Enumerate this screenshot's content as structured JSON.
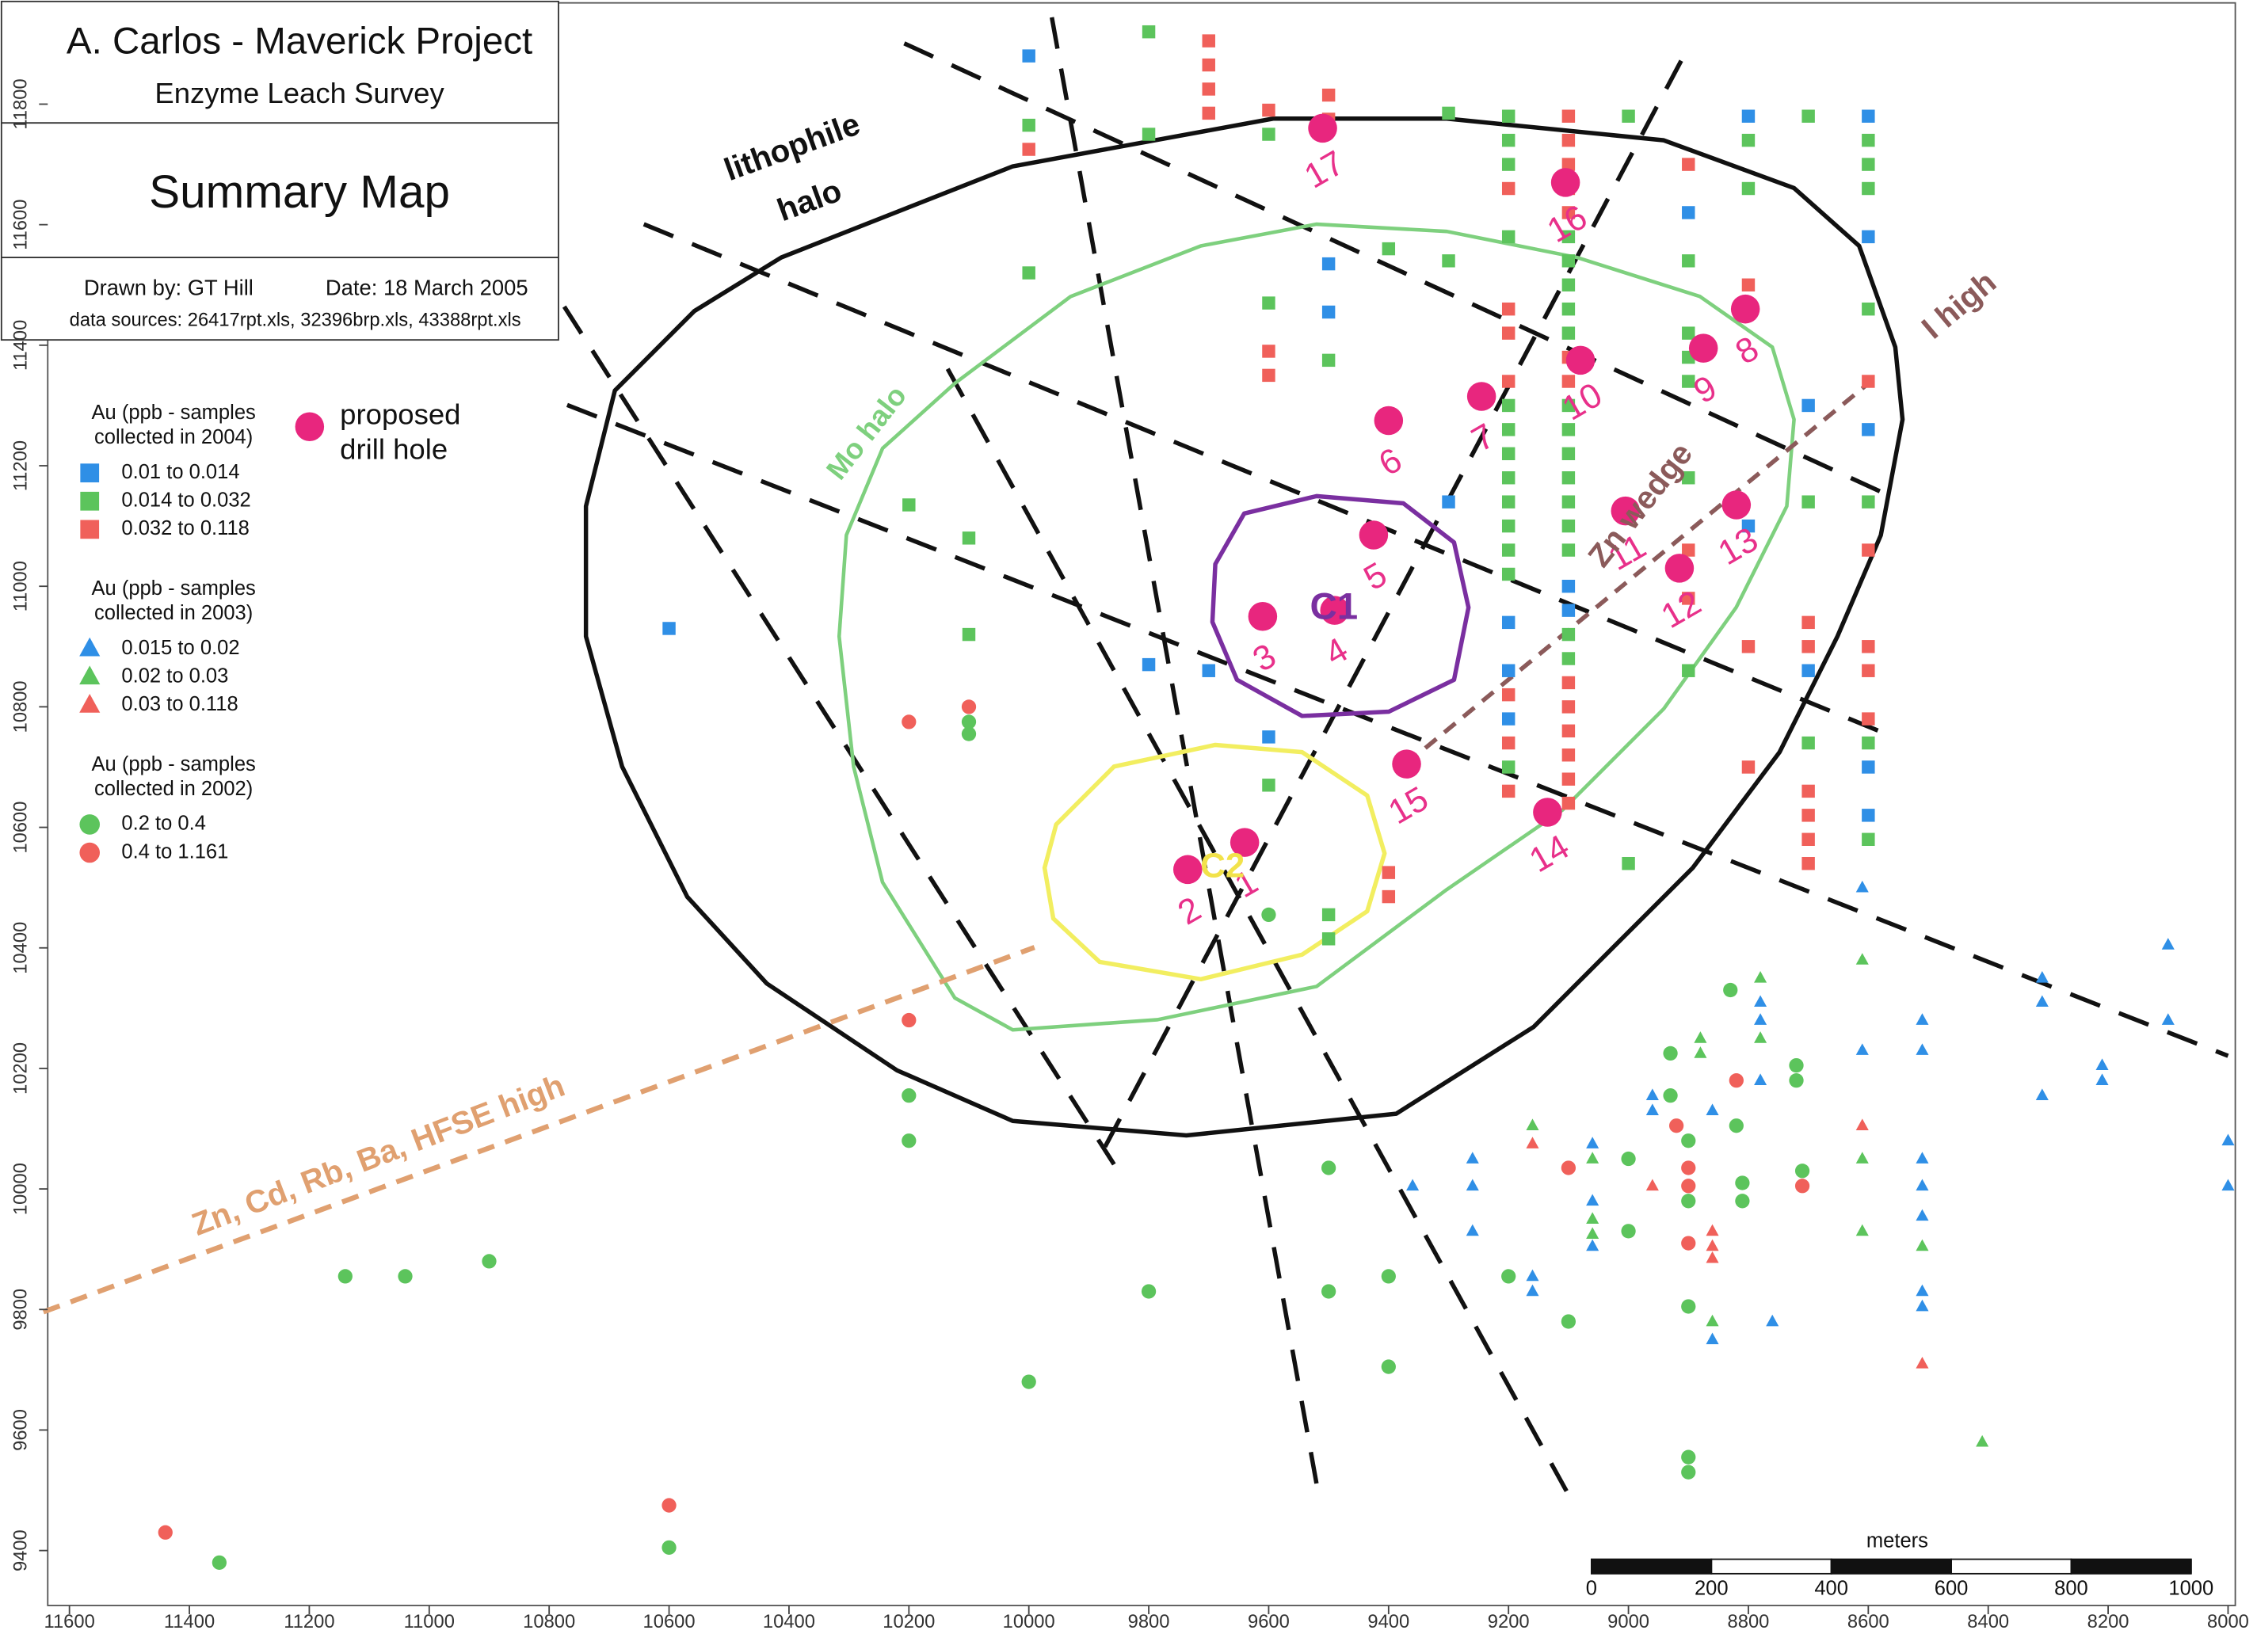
{
  "header": {
    "title": "A. Carlos - Maverick Project",
    "subtitle": "Enzyme Leach Survey",
    "map_title": "Summary Map",
    "drawn_by": "Drawn by: GT Hill",
    "date": "Date: 18 March 2005",
    "sources": "data sources: 26417rpt.xls, 32396brp.xls, 43388rpt.xls"
  },
  "axes": {
    "xlim": [
      11600,
      8000
    ],
    "ylim": [
      9400,
      11800
    ],
    "xticks": [
      11600,
      11400,
      11200,
      11000,
      10800,
      10600,
      10400,
      10200,
      10000,
      9800,
      9600,
      9400,
      9200,
      9000,
      8800,
      8600,
      8400,
      8200,
      8000
    ],
    "yticks": [
      9400,
      9600,
      9800,
      10000,
      10200,
      10400,
      10600,
      10800,
      11000,
      11200,
      11400,
      11600,
      11800
    ]
  },
  "legend": [
    {
      "title": [
        "Au (ppb - samples",
        "collected in 2004)"
      ],
      "shape": "square",
      "items": [
        {
          "label": "0.01  to  0.014",
          "color": "#2f8fe6"
        },
        {
          "label": "0.014  to  0.032",
          "color": "#5cc45c"
        },
        {
          "label": "0.032  to  0.118",
          "color": "#f0605a"
        }
      ],
      "points": [
        [
          10000,
          11880,
          0
        ],
        [
          10000,
          11765,
          1
        ],
        [
          10000,
          11725,
          2
        ],
        [
          10000,
          11520,
          1
        ],
        [
          9800,
          11920,
          1
        ],
        [
          9800,
          11750,
          1
        ],
        [
          9800,
          10870,
          0
        ],
        [
          9700,
          11905,
          2
        ],
        [
          9700,
          11865,
          2
        ],
        [
          9700,
          11825,
          2
        ],
        [
          9700,
          11785,
          2
        ],
        [
          9700,
          10860,
          0
        ],
        [
          10600,
          10930,
          0
        ],
        [
          10200,
          11135,
          1
        ],
        [
          10100,
          11080,
          1
        ],
        [
          10100,
          10920,
          1
        ],
        [
          9600,
          11790,
          2
        ],
        [
          9600,
          11750,
          1
        ],
        [
          9600,
          11470,
          1
        ],
        [
          9600,
          11390,
          2
        ],
        [
          9600,
          11350,
          2
        ],
        [
          9600,
          10750,
          0
        ],
        [
          9600,
          10670,
          1
        ],
        [
          9500,
          11815,
          2
        ],
        [
          9500,
          11775,
          2
        ],
        [
          9500,
          11535,
          0
        ],
        [
          9500,
          11455,
          0
        ],
        [
          9500,
          11375,
          1
        ],
        [
          9500,
          10455,
          1
        ],
        [
          9500,
          10415,
          1
        ],
        [
          9400,
          11560,
          1
        ],
        [
          9400,
          10525,
          2
        ],
        [
          9400,
          10485,
          2
        ],
        [
          9300,
          11785,
          1
        ],
        [
          9300,
          11540,
          1
        ],
        [
          9300,
          11140,
          0
        ],
        [
          9200,
          11780,
          1
        ],
        [
          9200,
          11740,
          1
        ],
        [
          9200,
          11700,
          1
        ],
        [
          9200,
          11660,
          2
        ],
        [
          9200,
          11580,
          1
        ],
        [
          9200,
          11460,
          2
        ],
        [
          9200,
          11420,
          2
        ],
        [
          9200,
          11340,
          2
        ],
        [
          9200,
          11300,
          1
        ],
        [
          9200,
          11260,
          1
        ],
        [
          9200,
          11220,
          1
        ],
        [
          9200,
          11180,
          1
        ],
        [
          9200,
          11140,
          1
        ],
        [
          9200,
          11100,
          1
        ],
        [
          9200,
          11060,
          1
        ],
        [
          9200,
          11020,
          1
        ],
        [
          9200,
          10940,
          0
        ],
        [
          9200,
          10860,
          0
        ],
        [
          9200,
          10820,
          2
        ],
        [
          9200,
          10780,
          0
        ],
        [
          9200,
          10740,
          2
        ],
        [
          9200,
          10700,
          1
        ],
        [
          9200,
          10660,
          2
        ],
        [
          9100,
          11780,
          2
        ],
        [
          9100,
          11740,
          2
        ],
        [
          9100,
          11700,
          2
        ],
        [
          9100,
          11660,
          2
        ],
        [
          9100,
          11620,
          2
        ],
        [
          9100,
          11580,
          1
        ],
        [
          9100,
          11540,
          1
        ],
        [
          9100,
          11500,
          1
        ],
        [
          9100,
          11460,
          1
        ],
        [
          9100,
          11420,
          1
        ],
        [
          9100,
          11380,
          2
        ],
        [
          9100,
          11340,
          2
        ],
        [
          9100,
          11300,
          1
        ],
        [
          9100,
          11260,
          1
        ],
        [
          9100,
          11220,
          1
        ],
        [
          9100,
          11180,
          1
        ],
        [
          9100,
          11140,
          1
        ],
        [
          9100,
          11100,
          1
        ],
        [
          9100,
          11060,
          1
        ],
        [
          9100,
          11000,
          0
        ],
        [
          9100,
          10960,
          0
        ],
        [
          9100,
          10920,
          1
        ],
        [
          9100,
          10880,
          1
        ],
        [
          9100,
          10840,
          2
        ],
        [
          9100,
          10800,
          2
        ],
        [
          9100,
          10760,
          2
        ],
        [
          9100,
          10720,
          2
        ],
        [
          9100,
          10680,
          2
        ],
        [
          9100,
          10640,
          2
        ],
        [
          9000,
          11780,
          1
        ],
        [
          9000,
          10540,
          1
        ],
        [
          8900,
          11700,
          2
        ],
        [
          8900,
          11620,
          0
        ],
        [
          8900,
          11540,
          1
        ],
        [
          8900,
          11420,
          1
        ],
        [
          8900,
          11380,
          1
        ],
        [
          8900,
          11340,
          1
        ],
        [
          8900,
          11180,
          1
        ],
        [
          8900,
          11060,
          2
        ],
        [
          8900,
          10980,
          2
        ],
        [
          8900,
          10860,
          1
        ],
        [
          8800,
          11780,
          0
        ],
        [
          8800,
          11740,
          1
        ],
        [
          8800,
          11660,
          1
        ],
        [
          8800,
          11500,
          2
        ],
        [
          8800,
          11460,
          2
        ],
        [
          8800,
          11100,
          0
        ],
        [
          8800,
          10900,
          2
        ],
        [
          8800,
          10700,
          2
        ],
        [
          8700,
          11780,
          1
        ],
        [
          8700,
          11300,
          0
        ],
        [
          8700,
          11140,
          1
        ],
        [
          8700,
          10940,
          2
        ],
        [
          8700,
          10900,
          2
        ],
        [
          8700,
          10860,
          0
        ],
        [
          8700,
          10740,
          1
        ],
        [
          8700,
          10660,
          2
        ],
        [
          8700,
          10620,
          2
        ],
        [
          8700,
          10580,
          2
        ],
        [
          8700,
          10540,
          2
        ],
        [
          8600,
          11780,
          0
        ],
        [
          8600,
          11740,
          1
        ],
        [
          8600,
          11700,
          1
        ],
        [
          8600,
          11660,
          1
        ],
        [
          8600,
          11580,
          0
        ],
        [
          8600,
          11460,
          1
        ],
        [
          8600,
          11340,
          2
        ],
        [
          8600,
          11260,
          0
        ],
        [
          8600,
          11140,
          1
        ],
        [
          8600,
          11060,
          2
        ],
        [
          8600,
          10900,
          2
        ],
        [
          8600,
          10860,
          2
        ],
        [
          8600,
          10780,
          2
        ],
        [
          8600,
          10740,
          1
        ],
        [
          8600,
          10700,
          0
        ],
        [
          8600,
          10620,
          0
        ],
        [
          8600,
          10580,
          1
        ]
      ]
    },
    {
      "title": [
        "Au (ppb - samples",
        "collected in 2003)"
      ],
      "shape": "triangle",
      "items": [
        {
          "label": "0.015  to  0.02",
          "color": "#2f8fe6"
        },
        {
          "label": "0.02  to  0.03",
          "color": "#5cc45c"
        },
        {
          "label": "0.03  to  0.118",
          "color": "#f0605a"
        }
      ],
      "points": [
        [
          9260,
          10050,
          0
        ],
        [
          9260,
          10005,
          0
        ],
        [
          9360,
          10005,
          0
        ],
        [
          9260,
          9930,
          0
        ],
        [
          9160,
          10105,
          1
        ],
        [
          9160,
          10075,
          2
        ],
        [
          9160,
          9855,
          0
        ],
        [
          9160,
          9830,
          0
        ],
        [
          9060,
          10075,
          0
        ],
        [
          9060,
          10050,
          1
        ],
        [
          9060,
          9980,
          0
        ],
        [
          9060,
          9950,
          1
        ],
        [
          9060,
          9925,
          1
        ],
        [
          9060,
          9905,
          0
        ],
        [
          8960,
          10155,
          0
        ],
        [
          8960,
          10130,
          0
        ],
        [
          8960,
          10005,
          2
        ],
        [
          8860,
          10130,
          0
        ],
        [
          8860,
          9930,
          2
        ],
        [
          8860,
          9905,
          2
        ],
        [
          8860,
          9885,
          2
        ],
        [
          8860,
          9780,
          1
        ],
        [
          8860,
          9750,
          0
        ],
        [
          8880,
          10250,
          1
        ],
        [
          8880,
          10225,
          1
        ],
        [
          8780,
          10350,
          1
        ],
        [
          8780,
          10310,
          0
        ],
        [
          8780,
          10280,
          0
        ],
        [
          8780,
          10250,
          1
        ],
        [
          8780,
          10180,
          0
        ],
        [
          8760,
          9780,
          0
        ],
        [
          8610,
          10380,
          1
        ],
        [
          8610,
          10230,
          0
        ],
        [
          8610,
          10105,
          2
        ],
        [
          8610,
          10050,
          1
        ],
        [
          8610,
          9930,
          1
        ],
        [
          8610,
          10500,
          0
        ],
        [
          8510,
          10280,
          0
        ],
        [
          8510,
          10230,
          0
        ],
        [
          8510,
          10050,
          0
        ],
        [
          8510,
          10005,
          0
        ],
        [
          8510,
          9955,
          0
        ],
        [
          8510,
          9905,
          1
        ],
        [
          8510,
          9830,
          0
        ],
        [
          8510,
          9805,
          0
        ],
        [
          8510,
          9710,
          2
        ],
        [
          8410,
          9580,
          1
        ],
        [
          8310,
          10350,
          0
        ],
        [
          8310,
          10310,
          0
        ],
        [
          8310,
          10155,
          0
        ],
        [
          8210,
          10205,
          0
        ],
        [
          8210,
          10180,
          0
        ],
        [
          8100,
          10405,
          0
        ],
        [
          8100,
          10280,
          0
        ],
        [
          8000,
          10080,
          0
        ],
        [
          8000,
          10005,
          0
        ]
      ]
    },
    {
      "title": [
        "Au (ppb - samples",
        "collected in 2002)"
      ],
      "shape": "circle",
      "items": [
        {
          "label": "0.2  to  0.4",
          "color": "#5cc45c"
        },
        {
          "label": "0.4  to  1.161",
          "color": "#f0605a"
        }
      ],
      "points": [
        [
          10200,
          10775,
          1
        ],
        [
          10100,
          10800,
          1
        ],
        [
          10100,
          10775,
          0
        ],
        [
          10100,
          10755,
          0
        ],
        [
          9600,
          10455,
          0
        ],
        [
          10200,
          10280,
          1
        ],
        [
          10200,
          10155,
          0
        ],
        [
          10200,
          10080,
          0
        ],
        [
          11140,
          9855,
          0
        ],
        [
          11040,
          9855,
          0
        ],
        [
          10900,
          9880,
          0
        ],
        [
          10000,
          9680,
          0
        ],
        [
          9800,
          9830,
          0
        ],
        [
          9500,
          10035,
          0
        ],
        [
          9500,
          9830,
          0
        ],
        [
          9400,
          9855,
          0
        ],
        [
          9400,
          9705,
          0
        ],
        [
          10600,
          9475,
          1
        ],
        [
          10600,
          9405,
          0
        ],
        [
          11440,
          9430,
          1
        ],
        [
          11350,
          9380,
          0
        ],
        [
          9200,
          9855,
          0
        ],
        [
          9100,
          10035,
          1
        ],
        [
          9100,
          9780,
          0
        ],
        [
          9000,
          10050,
          0
        ],
        [
          9000,
          9930,
          0
        ],
        [
          8900,
          10080,
          0
        ],
        [
          8900,
          10035,
          1
        ],
        [
          8900,
          10005,
          1
        ],
        [
          8900,
          9980,
          0
        ],
        [
          8900,
          9910,
          1
        ],
        [
          8900,
          9805,
          0
        ],
        [
          8900,
          9555,
          0
        ],
        [
          8900,
          9530,
          0
        ],
        [
          8930,
          10225,
          0
        ],
        [
          8930,
          10155,
          0
        ],
        [
          8920,
          10105,
          1
        ],
        [
          8830,
          10330,
          0
        ],
        [
          8820,
          10180,
          1
        ],
        [
          8820,
          10105,
          0
        ],
        [
          8810,
          10010,
          0
        ],
        [
          8810,
          9980,
          0
        ],
        [
          8720,
          10205,
          0
        ],
        [
          8720,
          10180,
          0
        ],
        [
          8710,
          10030,
          0
        ],
        [
          8710,
          10005,
          1
        ]
      ]
    }
  ],
  "drill_legend": {
    "label": [
      "proposed",
      "drill hole"
    ],
    "color": "#e8267e"
  },
  "drill_holes": [
    {
      "label": "1",
      "x": 9640,
      "y": 10575
    },
    {
      "label": "2",
      "x": 9735,
      "y": 10530
    },
    {
      "label": "3",
      "x": 9610,
      "y": 10950
    },
    {
      "label": "4",
      "x": 9490,
      "y": 10960
    },
    {
      "label": "5",
      "x": 9425,
      "y": 11085
    },
    {
      "label": "6",
      "x": 9400,
      "y": 11275
    },
    {
      "label": "7",
      "x": 9245,
      "y": 11315
    },
    {
      "label": "8",
      "x": 8805,
      "y": 11460
    },
    {
      "label": "9",
      "x": 8875,
      "y": 11395
    },
    {
      "label": "10",
      "x": 9080,
      "y": 11375
    },
    {
      "label": "11",
      "x": 9005,
      "y": 11125
    },
    {
      "label": "12",
      "x": 8915,
      "y": 11030
    },
    {
      "label": "13",
      "x": 8820,
      "y": 11135
    },
    {
      "label": "14",
      "x": 9135,
      "y": 10625
    },
    {
      "label": "15",
      "x": 9370,
      "y": 10705
    },
    {
      "label": "16",
      "x": 9105,
      "y": 11670
    },
    {
      "label": "17",
      "x": 9510,
      "y": 11760
    }
  ],
  "labels": {
    "lithophile": [
      "lithophile",
      "halo"
    ],
    "mo": "Mo halo",
    "zn_wedge": "Zn wedge",
    "i_high": "I high",
    "zn_cd": "Zn, Cd, Rb, Ba, HFSE high",
    "c1": "C1",
    "c2": "C2"
  },
  "scale_bar": {
    "title": "meters",
    "ticks": [
      0,
      200,
      400,
      600,
      800,
      1000
    ]
  }
}
